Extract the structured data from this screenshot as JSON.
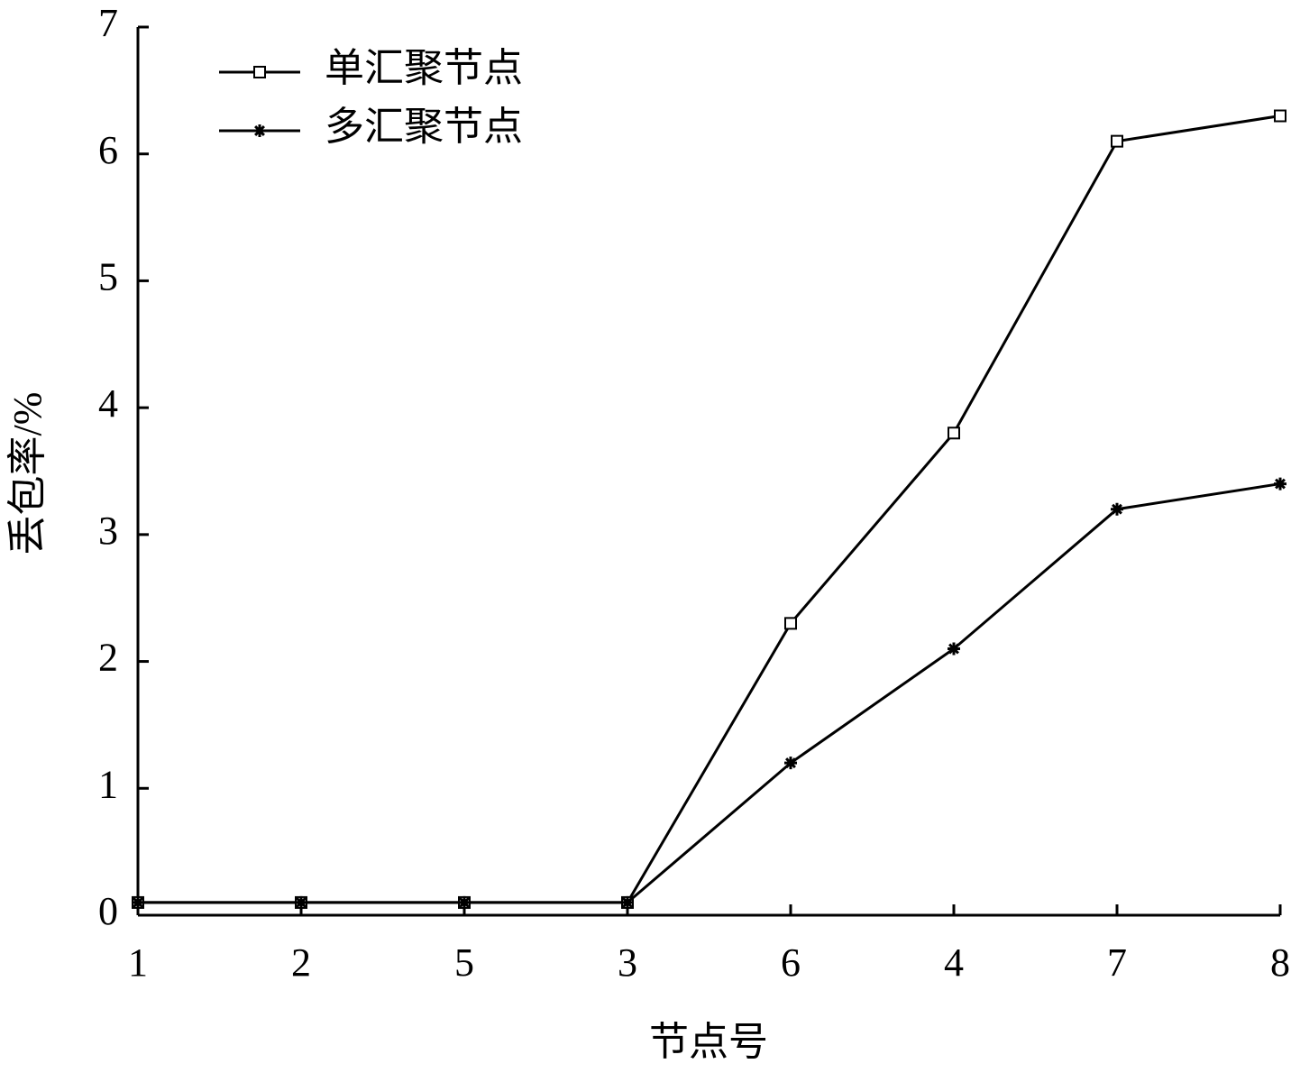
{
  "chart_data": {
    "type": "line",
    "xlabel": "节点号",
    "ylabel": "丢包率/%",
    "categories": [
      "1",
      "2",
      "5",
      "3",
      "6",
      "4",
      "7",
      "8"
    ],
    "series": [
      {
        "name": "单汇聚节点",
        "color": "#000000",
        "marker": "square",
        "values": [
          0.1,
          0.1,
          0.1,
          0.1,
          2.3,
          3.8,
          6.1,
          6.3
        ]
      },
      {
        "name": "多汇聚节点",
        "color": "#000000",
        "marker": "asterisk",
        "values": [
          0.1,
          0.1,
          0.1,
          0.1,
          1.2,
          2.1,
          3.2,
          3.4
        ]
      }
    ],
    "ylim": [
      0,
      7
    ],
    "yticks": [
      0,
      1,
      2,
      3,
      4,
      5,
      6,
      7
    ],
    "grid": false,
    "legend": "upper left"
  }
}
